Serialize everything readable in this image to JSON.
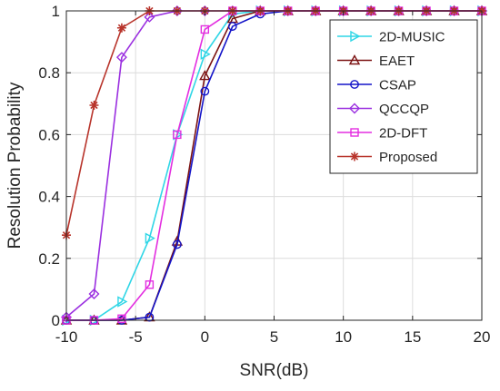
{
  "chart_data": {
    "type": "line",
    "xlabel": "SNR(dB)",
    "ylabel": "Resolution Probability",
    "xlim": [
      -10,
      20
    ],
    "ylim": [
      0,
      1
    ],
    "xticks": [
      "-10",
      "-5",
      "0",
      "5",
      "10",
      "15",
      "20"
    ],
    "yticks": [
      "0",
      "0.2",
      "0.4",
      "0.6",
      "0.8",
      "1"
    ],
    "grid": true,
    "legend_position": "top-right",
    "x": [
      -10,
      -8,
      -6,
      -4,
      -2,
      0,
      2,
      4,
      6,
      8,
      10,
      12,
      14,
      16,
      18,
      20
    ],
    "series": [
      {
        "name": "2D-MUSIC",
        "color": "#2fd6e6",
        "marker": "triangle-right",
        "values": [
          0.0,
          0.0,
          0.06,
          0.265,
          0.6,
          0.86,
          0.99,
          1,
          1,
          1,
          1,
          1,
          1,
          1,
          1,
          1
        ]
      },
      {
        "name": "EAET",
        "color": "#7b1212",
        "marker": "triangle-up",
        "values": [
          0.0,
          0.0,
          0.0,
          0.01,
          0.255,
          0.79,
          0.975,
          1,
          1,
          1,
          1,
          1,
          1,
          1,
          1,
          1
        ]
      },
      {
        "name": "CSAP",
        "color": "#1414c8",
        "marker": "circle",
        "values": [
          0.0,
          0.0,
          0.0,
          0.01,
          0.245,
          0.74,
          0.95,
          0.99,
          1,
          1,
          1,
          1,
          1,
          1,
          1,
          1
        ]
      },
      {
        "name": "QCCQP",
        "color": "#9b30e0",
        "marker": "diamond",
        "values": [
          0.01,
          0.085,
          0.85,
          0.98,
          1,
          1,
          1,
          1,
          1,
          1,
          1,
          1,
          1,
          1,
          1,
          1
        ]
      },
      {
        "name": "2D-DFT",
        "color": "#e32ee0",
        "marker": "square",
        "values": [
          0.0,
          0.0,
          0.005,
          0.115,
          0.6,
          0.94,
          1,
          1,
          1,
          1,
          1,
          1,
          1,
          1,
          1,
          1
        ]
      },
      {
        "name": "Proposed",
        "color": "#b8342b",
        "marker": "star",
        "values": [
          0.275,
          0.695,
          0.945,
          1,
          1,
          1,
          1,
          1,
          1,
          1,
          1,
          1,
          1,
          1,
          1,
          1
        ]
      }
    ]
  }
}
